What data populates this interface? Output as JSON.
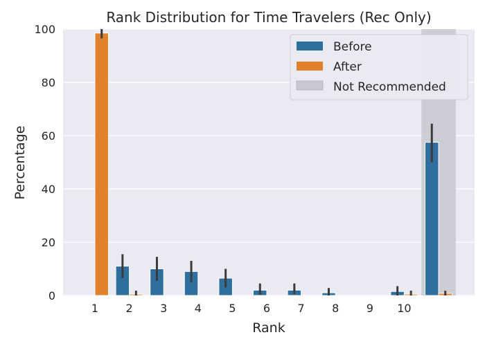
{
  "chart_data": {
    "type": "bar",
    "title": "Rank Distribution for Time Travelers (Rec Only)",
    "xlabel": "Rank",
    "ylabel": "Percentage",
    "ylim": [
      0,
      100
    ],
    "yticks": [
      0,
      20,
      40,
      60,
      80,
      100
    ],
    "categories": [
      "1",
      "2",
      "3",
      "4",
      "5",
      "6",
      "7",
      "8",
      "9",
      "10",
      ""
    ],
    "series": [
      {
        "name": "Before",
        "color": "#2e6f9e",
        "values": [
          0,
          11,
          10,
          9,
          6.5,
          2,
          2,
          1,
          0,
          1.5,
          57.5
        ],
        "error_low": [
          null,
          6.5,
          5.5,
          5,
          3,
          0.3,
          0.5,
          0,
          null,
          0,
          50
        ],
        "error_high": [
          null,
          15.5,
          14.5,
          13,
          10,
          4.5,
          4.5,
          2.8,
          null,
          3.5,
          64.5
        ]
      },
      {
        "name": "After",
        "color": "#e1812c",
        "values": [
          98.5,
          0.5,
          0,
          0,
          0,
          0,
          0,
          0,
          0,
          0.5,
          0.8
        ],
        "error_low": [
          96.5,
          0,
          null,
          null,
          null,
          null,
          null,
          null,
          null,
          0,
          0
        ],
        "error_high": [
          100,
          1.8,
          null,
          null,
          null,
          null,
          null,
          null,
          null,
          1.8,
          1.8
        ]
      }
    ],
    "shaded_region": {
      "category": "",
      "label": "Not Recommended",
      "color": "#c8c8d0"
    },
    "grid": true,
    "legend_position": "top-right"
  }
}
